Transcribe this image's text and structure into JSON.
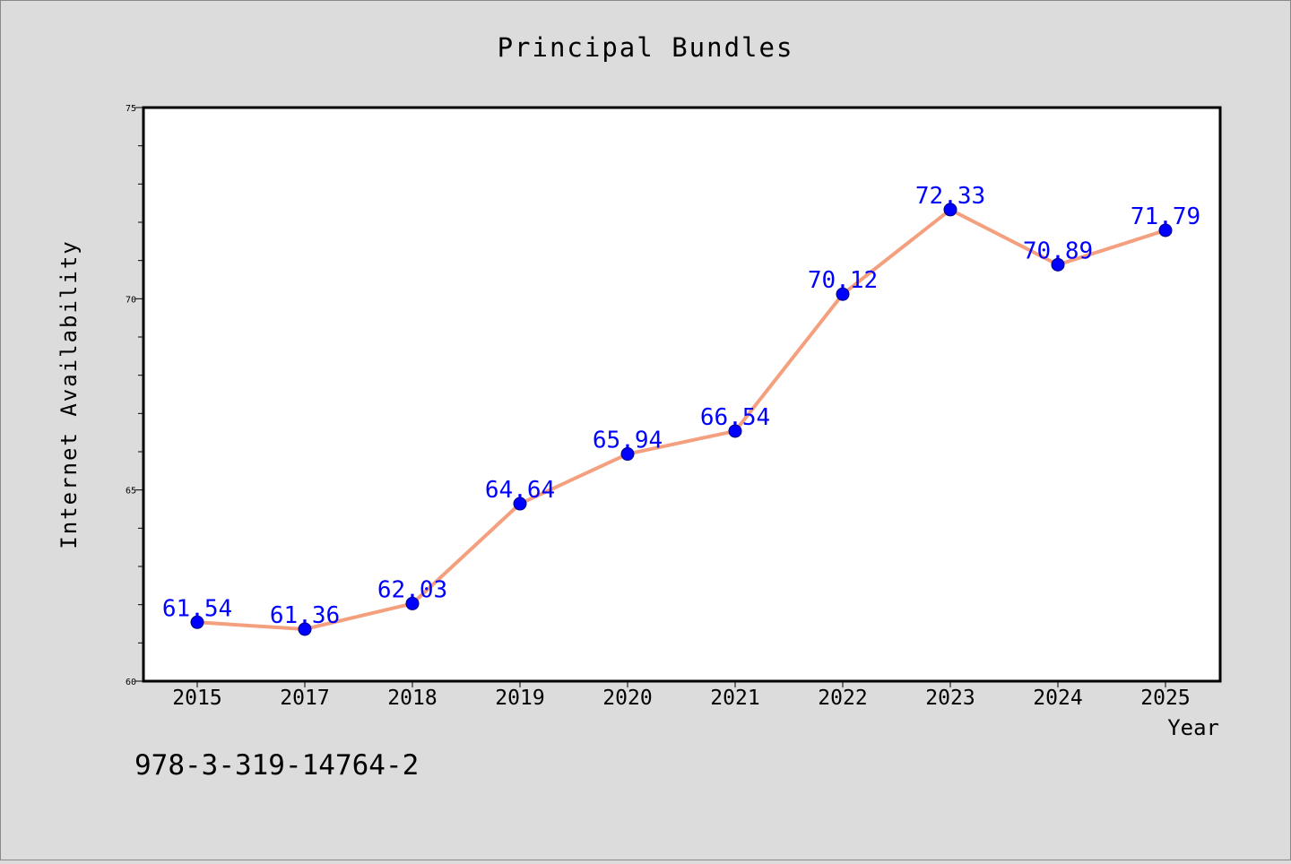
{
  "chart_data": {
    "type": "line",
    "title": "Principal Bundles",
    "xlabel": "Year",
    "ylabel": "Internet Availability",
    "categories": [
      "2015",
      "2017",
      "2018",
      "2019",
      "2020",
      "2021",
      "2022",
      "2023",
      "2024",
      "2025"
    ],
    "series": [
      {
        "values": [
          61.54,
          61.36,
          62.03,
          64.64,
          65.94,
          66.54,
          70.12,
          72.33,
          70.89,
          71.79
        ],
        "labels": [
          "61.54",
          "61.36",
          "62.03",
          "64.64",
          "65.94",
          "66.54",
          "70.12",
          "72.33",
          "70.89",
          "71.79"
        ],
        "line_color": "#f4a07f",
        "marker_color": "#0000ff",
        "label_color": "#0000ff"
      }
    ],
    "ylim": [
      60,
      75
    ],
    "yticks": [
      "60",
      "65",
      "70",
      "75"
    ],
    "grid": false,
    "legend": "none"
  },
  "annotation": "978-3-319-14764-2",
  "colors": {
    "background": "#dcdcdc",
    "plot_background": "#ffffff",
    "frame": "#000000"
  }
}
